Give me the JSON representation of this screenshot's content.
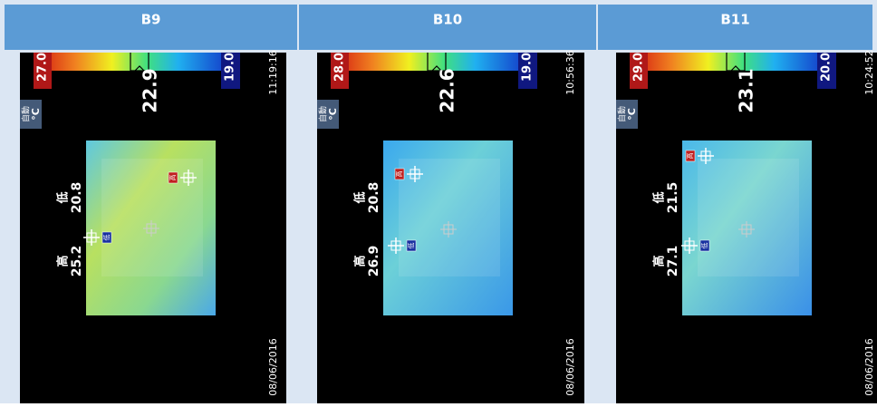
{
  "columns": [
    {
      "label": "B9",
      "scale_max": "27.0",
      "scale_min": "19.0",
      "center": "22.9",
      "time": "11:19:16",
      "date": "08/06/2016",
      "mode": "自動",
      "unit": "°C",
      "low_label": "低",
      "low": "20.8",
      "high_label": "高",
      "high": "25.2",
      "high_marker": "高",
      "low_marker": "低"
    },
    {
      "label": "B10",
      "scale_max": "28.0",
      "scale_min": "19.0",
      "center": "22.6",
      "time": "10:56:36",
      "date": "08/06/2016",
      "mode": "自動",
      "unit": "°C",
      "low_label": "低",
      "low": "20.8",
      "high_label": "高",
      "high": "26.9",
      "high_marker": "高",
      "low_marker": "低"
    },
    {
      "label": "B11",
      "scale_max": "29.0",
      "scale_min": "20.0",
      "center": "23.1",
      "time": "10:24:52",
      "date": "08/06/2016",
      "mode": "自動",
      "unit": "°C",
      "low_label": "低",
      "low": "21.5",
      "high_label": "高",
      "high": "27.1",
      "high_marker": "高",
      "low_marker": "低"
    }
  ]
}
